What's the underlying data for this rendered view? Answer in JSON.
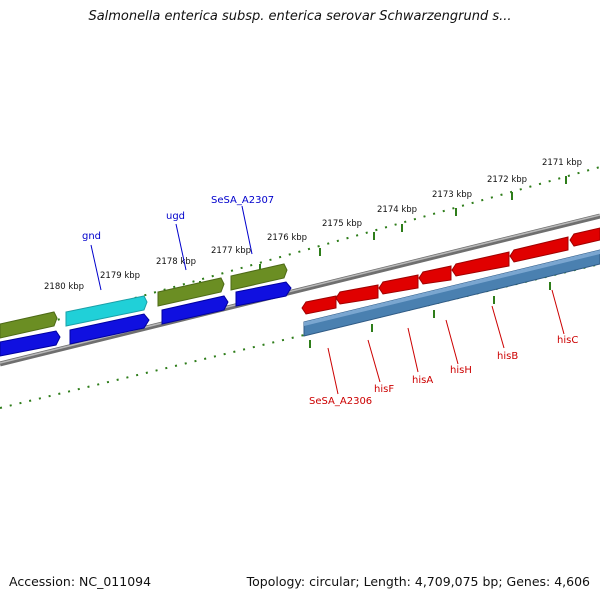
{
  "title": "Salmonella enterica subsp. enterica serovar Schwarzengrund s...",
  "footer": {
    "accession": "Accession: NC_011094",
    "topology": "Topology: circular; Length: 4,709,075 bp; Genes: 4,606"
  },
  "colors": {
    "backbone": "#8a8a8a",
    "tick": "#2e7d1a",
    "olive": "#6b8e23",
    "cyan": "#20d0d8",
    "blue": "#1010e0",
    "red": "#e00000",
    "steel": "#4a80b0",
    "label_blue": "#0000cc",
    "label_red": "#cc0000"
  },
  "kbp_labels_top": [
    "2180 kbp",
    "2179 kbp",
    "2178 kbp",
    "2177 kbp",
    "2176 kbp",
    "2175 kbp",
    "2174 kbp",
    "2173 kbp",
    "2172 kbp",
    "2171 kbp"
  ],
  "genes_left": [
    {
      "name": "gnd",
      "icon": "arrow-right"
    },
    {
      "name": "ugd",
      "icon": "arrow-right"
    },
    {
      "name": "SeSA_A2307",
      "icon": "arrow-right"
    }
  ],
  "genes_right": [
    {
      "name": "SeSA_A2306"
    },
    {
      "name": "hisF"
    },
    {
      "name": "hisA"
    },
    {
      "name": "hisH"
    },
    {
      "name": "hisB"
    },
    {
      "name": "hisC"
    }
  ]
}
